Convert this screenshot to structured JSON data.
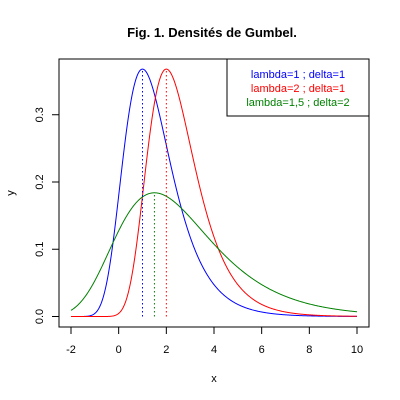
{
  "chart_data": {
    "type": "line",
    "title": "Fig. 1. Densités de Gumbel.",
    "xlabel": "x",
    "ylabel": "y",
    "xlim": [
      -2,
      10
    ],
    "ylim": [
      0,
      0.368
    ],
    "x_ticks": [
      -2,
      0,
      2,
      4,
      6,
      8,
      10
    ],
    "x_tick_labels": [
      "-2",
      "0",
      "2",
      "4",
      "6",
      "8",
      "10"
    ],
    "y_ticks": [
      0.0,
      0.1,
      0.2,
      0.3
    ],
    "y_tick_labels": [
      "0.0",
      "0.1",
      "0.2",
      "0.3"
    ],
    "grid": false,
    "legend_position": "top-right",
    "series": [
      {
        "name": "lambda=1 ; delta=1",
        "color": "#0000ff",
        "lambda": 1,
        "delta": 1,
        "peak": {
          "x": 1,
          "y": 0.3679
        },
        "x": [
          -2,
          -1,
          0,
          0.5,
          1,
          1.5,
          2,
          3,
          4,
          5,
          6,
          8,
          10
        ],
        "y": [
          0.0,
          0.0036,
          0.1794,
          0.317,
          0.3679,
          0.3315,
          0.2546,
          0.1182,
          0.0474,
          0.018,
          0.0067,
          0.0009,
          0.0001
        ]
      },
      {
        "name": "lambda=2 ; delta=1",
        "color": "#ff0000",
        "lambda": 2,
        "delta": 1,
        "peak": {
          "x": 2,
          "y": 0.3679
        },
        "x": [
          -2,
          -1,
          0,
          1,
          1.5,
          2,
          2.5,
          3,
          4,
          5,
          6,
          8,
          10
        ],
        "y": [
          0.0,
          0.0,
          0.0004,
          0.1794,
          0.317,
          0.3679,
          0.3315,
          0.2546,
          0.1182,
          0.0474,
          0.018,
          0.0025,
          0.0003
        ]
      },
      {
        "name": "lambda=1,5 ; delta=2",
        "color": "#008000",
        "lambda": 1.5,
        "delta": 2,
        "peak": {
          "x": 1.5,
          "y": 0.1839
        },
        "x": [
          -2,
          -1,
          0,
          1,
          1.5,
          2,
          3,
          4,
          5,
          6,
          8,
          10
        ],
        "y": [
          0.0101,
          0.0466,
          0.1127,
          0.173,
          0.1839,
          0.1752,
          0.1345,
          0.0902,
          0.0566,
          0.0342,
          0.0117,
          0.0039
        ]
      }
    ],
    "vertical_lines": [
      {
        "x": 1,
        "color": "#0000ff",
        "style": "dotted"
      },
      {
        "x": 1.5,
        "color": "#008000",
        "style": "dotted"
      },
      {
        "x": 2,
        "color": "#ff0000",
        "style": "dotted"
      }
    ]
  }
}
